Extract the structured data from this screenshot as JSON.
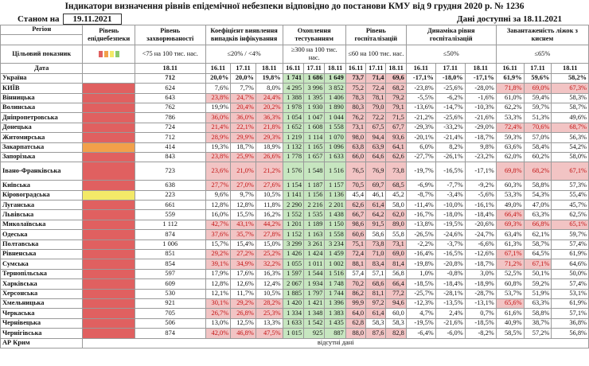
{
  "title": "Індикатори визначення рівнів епідемічної небезпеки відповідно до постанови КМУ від 9 грудня 2020 р. № 1236",
  "as_of_label": "Станом на",
  "as_of_date": "19.11.2021",
  "data_avail": "Дані доступні за 18.11.2021",
  "headers": {
    "region": "Регіон",
    "level": "Рівень епіднебезпеки",
    "incidence": "Рівень захворюваності",
    "detect": "Коефіцієнт виявлення випадків інфікування",
    "testing": "Охоплення тестуванням",
    "hosp": "Рівень госпіталізацій",
    "dyn": "Динаміка рівня госпіталізацій",
    "oxy": "Завантаженість ліжок з киснем",
    "target": "Цільовий показник",
    "incidence_t": "<75 на 100 тис. нас.",
    "detect_t": "≤20% / <4%",
    "testing_t": "≥300 на 100 тис. нас.",
    "hosp_t": "≤60 на 100 тис. нас.",
    "dyn_t": "≤50%",
    "oxy_t": "≤65%",
    "date": "Дата",
    "d18": "18.11",
    "d16": "16.11",
    "d17": "17.11",
    "d18b": "18.11"
  },
  "level_colors": {
    "red": "#e06060",
    "orange": "#f2a04a",
    "yellow": "#f3e968",
    "green": "#8cc96c"
  },
  "rows": [
    {
      "name": "Україна",
      "lvl": "",
      "inc": "712",
      "det": [
        "20,0%",
        "20,0%",
        "19,8%"
      ],
      "tst": [
        "1 741",
        "1 686",
        "1 649"
      ],
      "hsp": [
        "73,7",
        "71,4",
        "69,6"
      ],
      "dyn": [
        "-17,1%",
        "-18,0%",
        "-17,1%"
      ],
      "oxy": [
        "61,9%",
        "59,6%",
        "58,2%"
      ],
      "bold": true
    },
    {
      "name": "КИЇВ",
      "lvl": "red",
      "inc": "624",
      "det": [
        "7,6%",
        "7,7%",
        "8,0%"
      ],
      "tst": [
        "4 295",
        "3 996",
        "3 852"
      ],
      "hsp": [
        "75,2",
        "72,4",
        "68,2"
      ],
      "dyn": [
        "-23,8%",
        "-25,6%",
        "-28,0%"
      ],
      "oxy": [
        "71,8%",
        "69,0%",
        "67,3%"
      ]
    },
    {
      "name": "Вінницька",
      "lvl": "red",
      "inc": "643",
      "det": [
        "23,8%",
        "24,7%",
        "24,4%"
      ],
      "tst": [
        "1 388",
        "1 395",
        "1 406"
      ],
      "hsp": [
        "78,3",
        "78,1",
        "79,2"
      ],
      "dyn": [
        "-5,5%",
        "-6,2%",
        "-1,6%"
      ],
      "oxy": [
        "61,0%",
        "59,4%",
        "58,3%"
      ]
    },
    {
      "name": "Волинська",
      "lvl": "red",
      "inc": "762",
      "det": [
        "19,9%",
        "20,4%",
        "20,2%"
      ],
      "tst": [
        "1 978",
        "1 930",
        "1 890"
      ],
      "hsp": [
        "80,3",
        "79,0",
        "79,1"
      ],
      "dyn": [
        "-13,6%",
        "-14,7%",
        "-10,3%"
      ],
      "oxy": [
        "62,2%",
        "59,7%",
        "58,7%"
      ]
    },
    {
      "name": "Дніпропетровська",
      "lvl": "red",
      "inc": "786",
      "det": [
        "36,0%",
        "36,0%",
        "36,3%"
      ],
      "tst": [
        "1 054",
        "1 047",
        "1 044"
      ],
      "hsp": [
        "76,2",
        "72,2",
        "71,5"
      ],
      "dyn": [
        "-21,2%",
        "-25,6%",
        "-21,6%"
      ],
      "oxy": [
        "53,3%",
        "51,3%",
        "49,6%"
      ]
    },
    {
      "name": "Донецька",
      "lvl": "red",
      "inc": "724",
      "det": [
        "21,4%",
        "22,1%",
        "21,8%"
      ],
      "tst": [
        "1 652",
        "1 608",
        "1 558"
      ],
      "hsp": [
        "73,1",
        "67,5",
        "67,7"
      ],
      "dyn": [
        "-29,3%",
        "-33,2%",
        "-29,0%"
      ],
      "oxy": [
        "72,4%",
        "70,6%",
        "68,7%"
      ]
    },
    {
      "name": "Житомирська",
      "lvl": "red",
      "inc": "712",
      "det": [
        "28,9%",
        "29,9%",
        "29,3%"
      ],
      "tst": [
        "1 219",
        "1 114",
        "1 070"
      ],
      "hsp": [
        "98,0",
        "94,4",
        "93,6"
      ],
      "dyn": [
        "-20,1%",
        "-21,4%",
        "-18,7%"
      ],
      "oxy": [
        "59,3%",
        "57,0%",
        "56,3%"
      ]
    },
    {
      "name": "Закарпатська",
      "lvl": "orange",
      "inc": "414",
      "det": [
        "19,3%",
        "18,7%",
        "18,9%"
      ],
      "tst": [
        "1 132",
        "1 165",
        "1 096"
      ],
      "hsp": [
        "63,8",
        "63,9",
        "64,1"
      ],
      "dyn": [
        "6,0%",
        "8,2%",
        "9,8%"
      ],
      "oxy": [
        "63,6%",
        "58,4%",
        "54,2%"
      ]
    },
    {
      "name": "Запорізька",
      "lvl": "red",
      "inc": "843",
      "det": [
        "23,8%",
        "25,9%",
        "26,6%"
      ],
      "tst": [
        "1 778",
        "1 657",
        "1 633"
      ],
      "hsp": [
        "66,0",
        "64,6",
        "62,6"
      ],
      "dyn": [
        "-27,7%",
        "-26,1%",
        "-23,2%"
      ],
      "oxy": [
        "62,0%",
        "60,2%",
        "58,0%"
      ]
    },
    {
      "name": "Івано-Франківська",
      "lvl": "red",
      "inc": "723",
      "det": [
        "23,6%",
        "21,0%",
        "21,2%"
      ],
      "tst": [
        "1 576",
        "1 548",
        "1 516"
      ],
      "hsp": [
        "76,5",
        "76,9",
        "73,8"
      ],
      "dyn": [
        "-19,7%",
        "-16,5%",
        "-17,1%"
      ],
      "oxy": [
        "69,8%",
        "68,2%",
        "67,1%"
      ],
      "tall": true
    },
    {
      "name": "Київська",
      "lvl": "red",
      "inc": "638",
      "det": [
        "27,7%",
        "27,0%",
        "27,6%"
      ],
      "tst": [
        "1 154",
        "1 187",
        "1 157"
      ],
      "hsp": [
        "70,5",
        "69,7",
        "68,5"
      ],
      "dyn": [
        "-6,9%",
        "-7,7%",
        "-9,2%"
      ],
      "oxy": [
        "60,3%",
        "58,8%",
        "57,3%"
      ]
    },
    {
      "name": "Кіровоградська",
      "lvl": "yellow",
      "inc": "223",
      "det": [
        "9,6%",
        "9,7%",
        "10,5%"
      ],
      "tst": [
        "1 141",
        "1 156",
        "1 136"
      ],
      "hsp": [
        "45,4",
        "46,1",
        "45,2"
      ],
      "dyn": [
        "-8,7%",
        "-3,4%",
        "-5,6%"
      ],
      "oxy": [
        "53,3%",
        "54,3%",
        "55,4%"
      ]
    },
    {
      "name": "Луганська",
      "lvl": "red",
      "inc": "661",
      "det": [
        "12,8%",
        "12,8%",
        "11,8%"
      ],
      "tst": [
        "2 290",
        "2 216",
        "2 201"
      ],
      "hsp": [
        "62,6",
        "61,4",
        "58,0"
      ],
      "dyn": [
        "-11,4%",
        "-10,0%",
        "-16,1%"
      ],
      "oxy": [
        "49,0%",
        "47,0%",
        "45,7%"
      ]
    },
    {
      "name": "Львівська",
      "lvl": "red",
      "inc": "559",
      "det": [
        "16,0%",
        "15,5%",
        "16,2%"
      ],
      "tst": [
        "1 552",
        "1 535",
        "1 438"
      ],
      "hsp": [
        "66,7",
        "64,2",
        "62,0"
      ],
      "dyn": [
        "-16,7%",
        "-18,0%",
        "-18,4%"
      ],
      "oxy": [
        "66,4%",
        "63,3%",
        "62,5%"
      ]
    },
    {
      "name": "Миколаївська",
      "lvl": "red",
      "inc": "1 112",
      "det": [
        "42,7%",
        "43,1%",
        "44,2%"
      ],
      "tst": [
        "1 201",
        "1 189",
        "1 150"
      ],
      "hsp": [
        "98,6",
        "91,5",
        "89,0"
      ],
      "dyn": [
        "-13,8%",
        "-19,5%",
        "-20,6%"
      ],
      "oxy": [
        "69,3%",
        "66,8%",
        "65,1%"
      ]
    },
    {
      "name": "Одеська",
      "lvl": "red",
      "inc": "874",
      "det": [
        "37,6%",
        "35,7%",
        "27,8%"
      ],
      "tst": [
        "1 152",
        "1 163",
        "1 558"
      ],
      "hsp": [
        "60,6",
        "58,6",
        "55,8"
      ],
      "dyn": [
        "-26,5%",
        "-24,6%",
        "-24,7%"
      ],
      "oxy": [
        "63,4%",
        "62,1%",
        "59,7%"
      ]
    },
    {
      "name": "Полтавська",
      "lvl": "red",
      "inc": "1 006",
      "det": [
        "15,7%",
        "15,4%",
        "15,0%"
      ],
      "tst": [
        "3 299",
        "3 261",
        "3 234"
      ],
      "hsp": [
        "75,1",
        "73,8",
        "73,1"
      ],
      "dyn": [
        "-2,2%",
        "-3,7%",
        "-6,6%"
      ],
      "oxy": [
        "61,3%",
        "58,7%",
        "57,4%"
      ]
    },
    {
      "name": "Рівненська",
      "lvl": "red",
      "inc": "851",
      "det": [
        "29,2%",
        "27,2%",
        "25,2%"
      ],
      "tst": [
        "1 426",
        "1 424",
        "1 459"
      ],
      "hsp": [
        "72,4",
        "71,0",
        "69,0"
      ],
      "dyn": [
        "-16,4%",
        "-16,5%",
        "-12,6%"
      ],
      "oxy": [
        "67,1%",
        "64,5%",
        "61,9%"
      ]
    },
    {
      "name": "Сумська",
      "lvl": "red",
      "inc": "854",
      "det": [
        "39,1%",
        "34,9%",
        "32,2%"
      ],
      "tst": [
        "1 055",
        "1 011",
        "1 002"
      ],
      "hsp": [
        "88,1",
        "83,4",
        "81,4"
      ],
      "dyn": [
        "-19,8%",
        "-20,8%",
        "-18,7%"
      ],
      "oxy": [
        "71,2%",
        "67,1%",
        "64,6%"
      ]
    },
    {
      "name": "Тернопільська",
      "lvl": "red",
      "inc": "597",
      "det": [
        "17,9%",
        "17,6%",
        "16,3%"
      ],
      "tst": [
        "1 597",
        "1 544",
        "1 516"
      ],
      "hsp": [
        "57,4",
        "57,1",
        "56,8"
      ],
      "dyn": [
        "1,0%",
        "-0,8%",
        "3,0%"
      ],
      "oxy": [
        "52,5%",
        "50,1%",
        "50,0%"
      ]
    },
    {
      "name": "Харківська",
      "lvl": "red",
      "inc": "609",
      "det": [
        "12,8%",
        "12,6%",
        "12,4%"
      ],
      "tst": [
        "2 067",
        "1 934",
        "1 748"
      ],
      "hsp": [
        "70,2",
        "68,6",
        "66,4"
      ],
      "dyn": [
        "-18,5%",
        "-18,4%",
        "-18,9%"
      ],
      "oxy": [
        "60,8%",
        "59,2%",
        "57,4%"
      ]
    },
    {
      "name": "Херсонська",
      "lvl": "red",
      "inc": "530",
      "det": [
        "12,1%",
        "11,7%",
        "10,5%"
      ],
      "tst": [
        "1 885",
        "1 797",
        "1 744"
      ],
      "hsp": [
        "86,2",
        "81,1",
        "77,2"
      ],
      "dyn": [
        "-25,7%",
        "-28,1%",
        "-28,7%"
      ],
      "oxy": [
        "53,7%",
        "51,9%",
        "53,1%"
      ]
    },
    {
      "name": "Хмельницька",
      "lvl": "red",
      "inc": "921",
      "det": [
        "30,1%",
        "29,2%",
        "28,2%"
      ],
      "tst": [
        "1 420",
        "1 421",
        "1 396"
      ],
      "hsp": [
        "99,9",
        "97,2",
        "94,6"
      ],
      "dyn": [
        "-12,3%",
        "-13,5%",
        "-13,1%"
      ],
      "oxy": [
        "65,6%",
        "63,3%",
        "61,9%"
      ]
    },
    {
      "name": "Черкаська",
      "lvl": "red",
      "inc": "705",
      "det": [
        "26,7%",
        "26,8%",
        "25,3%"
      ],
      "tst": [
        "1 334",
        "1 348",
        "1 383"
      ],
      "hsp": [
        "64,0",
        "61,4",
        "60,0"
      ],
      "dyn": [
        "4,7%",
        "2,4%",
        "0,7%"
      ],
      "oxy": [
        "61,6%",
        "58,8%",
        "57,1%"
      ]
    },
    {
      "name": "Чернівецька",
      "lvl": "red",
      "inc": "506",
      "det": [
        "13,0%",
        "12,5%",
        "13,3%"
      ],
      "tst": [
        "1 633",
        "1 542",
        "1 435"
      ],
      "hsp": [
        "62,8",
        "58,3",
        "58,3"
      ],
      "dyn": [
        "-19,5%",
        "-21,6%",
        "-18,5%"
      ],
      "oxy": [
        "40,9%",
        "38,7%",
        "36,8%"
      ]
    },
    {
      "name": "Чернігівська",
      "lvl": "red",
      "inc": "874",
      "det": [
        "42,0%",
        "46,8%",
        "47,5%"
      ],
      "tst": [
        "1 015",
        "925",
        "887"
      ],
      "hsp": [
        "88,0",
        "87,6",
        "82,8"
      ],
      "dyn": [
        "-6,4%",
        "-6,0%",
        "-8,2%"
      ],
      "oxy": [
        "58,5%",
        "57,2%",
        "56,8%"
      ]
    }
  ],
  "last_row": {
    "name": "АР Крим",
    "text": "відсутні дані"
  }
}
